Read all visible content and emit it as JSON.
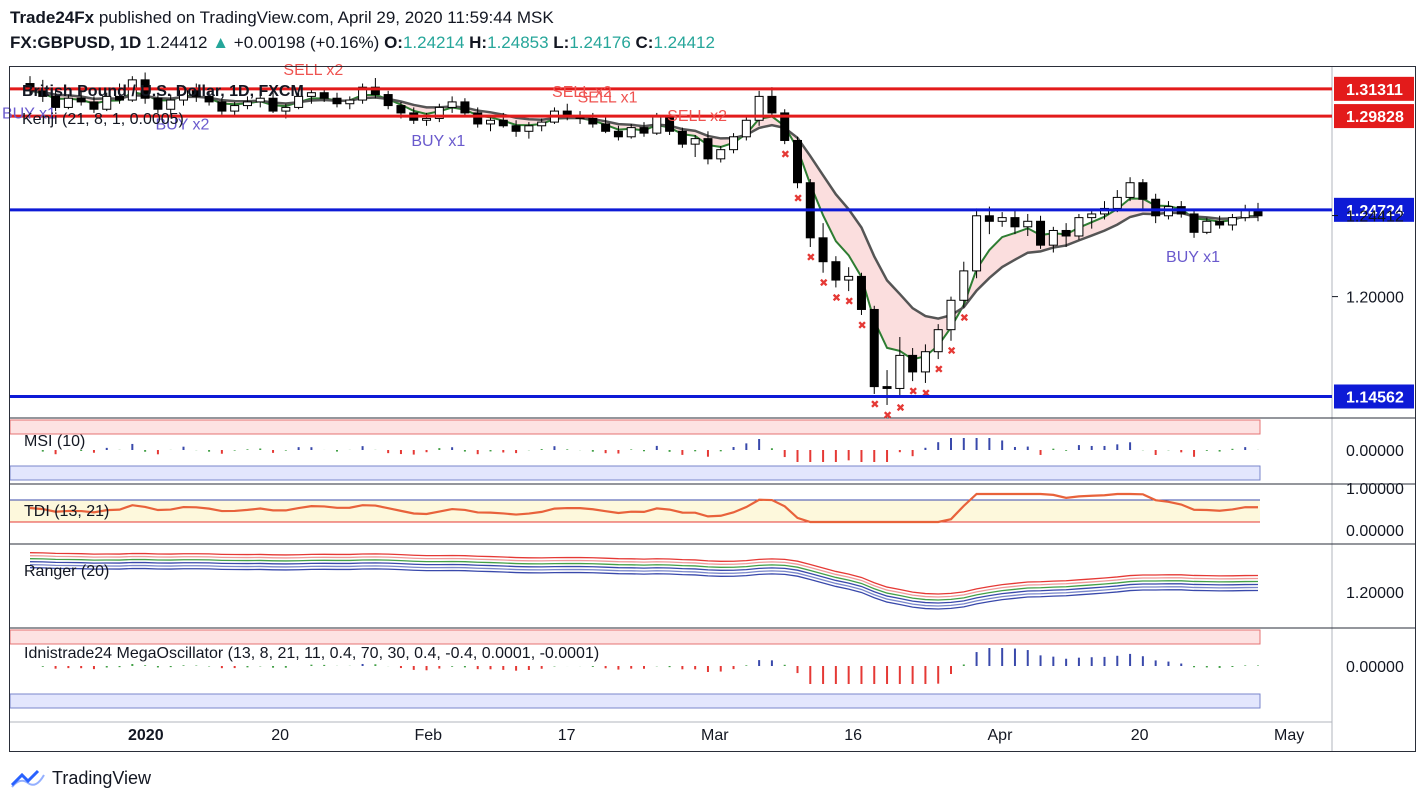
{
  "header": {
    "publisher": "Trade24Fx",
    "published_text": "published on TradingView.com, April 29, 2020 11:59:44 MSK",
    "symbol": "FX:GBPUSD, 1D",
    "last": "1.24412",
    "arrow": "▲",
    "change": "+0.00198 (+0.16%)",
    "o_label": "O:",
    "o": "1.24214",
    "h_label": "H:",
    "h": "1.24853",
    "l_label": "L:",
    "l": "1.24176",
    "c_label": "C:",
    "c": "1.24412"
  },
  "footer": {
    "brand": "TradingView"
  },
  "colors": {
    "up": "#26a69a",
    "red_line": "#e31b1b",
    "blue_line": "#0d1ad6",
    "label_red": "#e31b1b",
    "label_blue": "#0d1ad6",
    "buy_text": "#6a5acd",
    "sell_text": "#ef5350"
  },
  "chart_data": {
    "type": "candlestick",
    "title": "British Pound / U.S. Dollar, 1D, FXCM",
    "indicator_label": "Kenji (21, 8, 1, 0.0005)",
    "x_ticks": [
      "2020",
      "20",
      "Feb",
      "17",
      "Mar",
      "16",
      "Apr",
      "20",
      "May"
    ],
    "price_levels": [
      {
        "value": 1.31311,
        "label": "1.31311",
        "color": "#e31b1b"
      },
      {
        "value": 1.29828,
        "label": "1.29828",
        "color": "#e31b1b"
      },
      {
        "value": 1.24724,
        "label": "1.24724",
        "color": "#0d1ad6"
      },
      {
        "value": 1.14562,
        "label": "1.14562",
        "color": "#0d1ad6"
      }
    ],
    "y_ticks": [
      {
        "value": 1.24412,
        "label": "1.24412"
      },
      {
        "value": 1.2,
        "label": "1.20000"
      }
    ],
    "ylim": [
      1.135,
      1.325
    ],
    "signals": [
      {
        "label": "BUY x1",
        "kind": "buy",
        "i": 0
      },
      {
        "label": "BUY x2",
        "kind": "buy",
        "i": 12
      },
      {
        "label": "SELL x2",
        "kind": "sell",
        "i": 22
      },
      {
        "label": "BUY x1",
        "kind": "buy",
        "i": 32
      },
      {
        "label": "SELL x2",
        "kind": "sell",
        "i": 43
      },
      {
        "label": "SELL x1",
        "kind": "sell",
        "i": 45
      },
      {
        "label": "SELL x2",
        "kind": "sell",
        "i": 52
      },
      {
        "label": "BUY x1",
        "kind": "buy",
        "i": 91
      }
    ],
    "candles": [
      [
        1.316,
        1.32,
        1.31,
        1.312
      ],
      [
        1.312,
        1.318,
        1.306,
        1.309
      ],
      [
        1.309,
        1.312,
        1.301,
        1.303
      ],
      [
        1.303,
        1.31,
        1.302,
        1.308
      ],
      [
        1.308,
        1.313,
        1.304,
        1.306
      ],
      [
        1.306,
        1.309,
        1.3,
        1.302
      ],
      [
        1.302,
        1.311,
        1.301,
        1.309
      ],
      [
        1.309,
        1.316,
        1.305,
        1.307
      ],
      [
        1.307,
        1.32,
        1.306,
        1.318
      ],
      [
        1.318,
        1.322,
        1.305,
        1.308
      ],
      [
        1.308,
        1.311,
        1.3,
        1.302
      ],
      [
        1.302,
        1.31,
        1.299,
        1.307
      ],
      [
        1.307,
        1.315,
        1.304,
        1.313
      ],
      [
        1.313,
        1.316,
        1.306,
        1.309
      ],
      [
        1.309,
        1.312,
        1.304,
        1.306
      ],
      [
        1.306,
        1.308,
        1.299,
        1.301
      ],
      [
        1.301,
        1.306,
        1.298,
        1.304
      ],
      [
        1.304,
        1.309,
        1.302,
        1.306
      ],
      [
        1.306,
        1.31,
        1.303,
        1.308
      ],
      [
        1.308,
        1.312,
        1.3,
        1.301
      ],
      [
        1.301,
        1.305,
        1.297,
        1.303
      ],
      [
        1.303,
        1.311,
        1.302,
        1.309
      ],
      [
        1.309,
        1.313,
        1.305,
        1.311
      ],
      [
        1.311,
        1.313,
        1.306,
        1.308
      ],
      [
        1.308,
        1.311,
        1.303,
        1.305
      ],
      [
        1.305,
        1.309,
        1.302,
        1.307
      ],
      [
        1.307,
        1.316,
        1.305,
        1.314
      ],
      [
        1.314,
        1.319,
        1.308,
        1.31
      ],
      [
        1.31,
        1.312,
        1.302,
        1.304
      ],
      [
        1.304,
        1.306,
        1.297,
        1.3
      ],
      [
        1.3,
        1.303,
        1.294,
        1.296
      ],
      [
        1.296,
        1.3,
        1.293,
        1.297
      ],
      [
        1.297,
        1.305,
        1.295,
        1.303
      ],
      [
        1.303,
        1.309,
        1.3,
        1.306
      ],
      [
        1.306,
        1.308,
        1.298,
        1.3
      ],
      [
        1.3,
        1.303,
        1.292,
        1.294
      ],
      [
        1.294,
        1.298,
        1.29,
        1.296
      ],
      [
        1.296,
        1.3,
        1.292,
        1.293
      ],
      [
        1.293,
        1.296,
        1.287,
        1.29
      ],
      [
        1.29,
        1.295,
        1.286,
        1.293
      ],
      [
        1.293,
        1.297,
        1.29,
        1.295
      ],
      [
        1.295,
        1.303,
        1.294,
        1.301
      ],
      [
        1.301,
        1.305,
        1.296,
        1.298
      ],
      [
        1.298,
        1.301,
        1.294,
        1.297
      ],
      [
        1.297,
        1.3,
        1.292,
        1.294
      ],
      [
        1.294,
        1.298,
        1.289,
        1.29
      ],
      [
        1.29,
        1.293,
        1.285,
        1.287
      ],
      [
        1.287,
        1.294,
        1.286,
        1.292
      ],
      [
        1.292,
        1.295,
        1.287,
        1.289
      ],
      [
        1.289,
        1.3,
        1.288,
        1.298
      ],
      [
        1.298,
        1.301,
        1.288,
        1.29
      ],
      [
        1.29,
        1.292,
        1.281,
        1.283
      ],
      [
        1.283,
        1.288,
        1.276,
        1.286
      ],
      [
        1.286,
        1.29,
        1.272,
        1.275
      ],
      [
        1.275,
        1.282,
        1.273,
        1.28
      ],
      [
        1.28,
        1.289,
        1.278,
        1.287
      ],
      [
        1.287,
        1.298,
        1.285,
        1.296
      ],
      [
        1.296,
        1.312,
        1.293,
        1.309
      ],
      [
        1.309,
        1.314,
        1.298,
        1.3
      ],
      [
        1.3,
        1.302,
        1.283,
        1.285
      ],
      [
        1.285,
        1.287,
        1.259,
        1.262
      ],
      [
        1.262,
        1.264,
        1.227,
        1.232
      ],
      [
        1.232,
        1.24,
        1.213,
        1.219
      ],
      [
        1.219,
        1.222,
        1.205,
        1.209
      ],
      [
        1.209,
        1.216,
        1.203,
        1.211
      ],
      [
        1.211,
        1.213,
        1.19,
        1.193
      ],
      [
        1.193,
        1.195,
        1.147,
        1.151
      ],
      [
        1.151,
        1.16,
        1.141,
        1.15
      ],
      [
        1.15,
        1.178,
        1.145,
        1.168
      ],
      [
        1.168,
        1.172,
        1.154,
        1.159
      ],
      [
        1.159,
        1.174,
        1.153,
        1.17
      ],
      [
        1.17,
        1.185,
        1.166,
        1.182
      ],
      [
        1.182,
        1.2,
        1.176,
        1.198
      ],
      [
        1.198,
        1.219,
        1.194,
        1.214
      ],
      [
        1.214,
        1.248,
        1.21,
        1.244
      ],
      [
        1.244,
        1.249,
        1.234,
        1.241
      ],
      [
        1.241,
        1.246,
        1.238,
        1.243
      ],
      [
        1.243,
        1.247,
        1.234,
        1.238
      ],
      [
        1.238,
        1.245,
        1.233,
        1.241
      ],
      [
        1.241,
        1.244,
        1.226,
        1.228
      ],
      [
        1.228,
        1.238,
        1.224,
        1.236
      ],
      [
        1.236,
        1.24,
        1.227,
        1.233
      ],
      [
        1.233,
        1.245,
        1.231,
        1.243
      ],
      [
        1.243,
        1.247,
        1.237,
        1.245
      ],
      [
        1.245,
        1.252,
        1.242,
        1.248
      ],
      [
        1.248,
        1.258,
        1.246,
        1.254
      ],
      [
        1.254,
        1.265,
        1.252,
        1.262
      ],
      [
        1.262,
        1.264,
        1.247,
        1.253
      ],
      [
        1.253,
        1.256,
        1.24,
        1.244
      ],
      [
        1.244,
        1.252,
        1.242,
        1.249
      ],
      [
        1.249,
        1.252,
        1.243,
        1.245
      ],
      [
        1.245,
        1.247,
        1.232,
        1.235
      ],
      [
        1.235,
        1.243,
        1.234,
        1.241
      ],
      [
        1.241,
        1.244,
        1.237,
        1.239
      ],
      [
        1.239,
        1.245,
        1.236,
        1.243
      ],
      [
        1.243,
        1.25,
        1.241,
        1.247
      ],
      [
        1.247,
        1.251,
        1.241,
        1.244
      ]
    ],
    "panes": [
      {
        "name": "msi",
        "label": "MSI (10)",
        "axis_label": "0.00000"
      },
      {
        "name": "tdi",
        "label": "TDI (13, 21)",
        "axis_labels": [
          "1.00000",
          "0.00000"
        ]
      },
      {
        "name": "ranger",
        "label": "Ranger (20)",
        "axis_label": "1.20000"
      },
      {
        "name": "mega",
        "label": "Idnistrade24 MegaOscillator (13, 8, 21, 11, 0.4, 70, 30, 0.4, -0.4, 0.0001, -0.0001)",
        "axis_label": "0.00000"
      }
    ]
  }
}
